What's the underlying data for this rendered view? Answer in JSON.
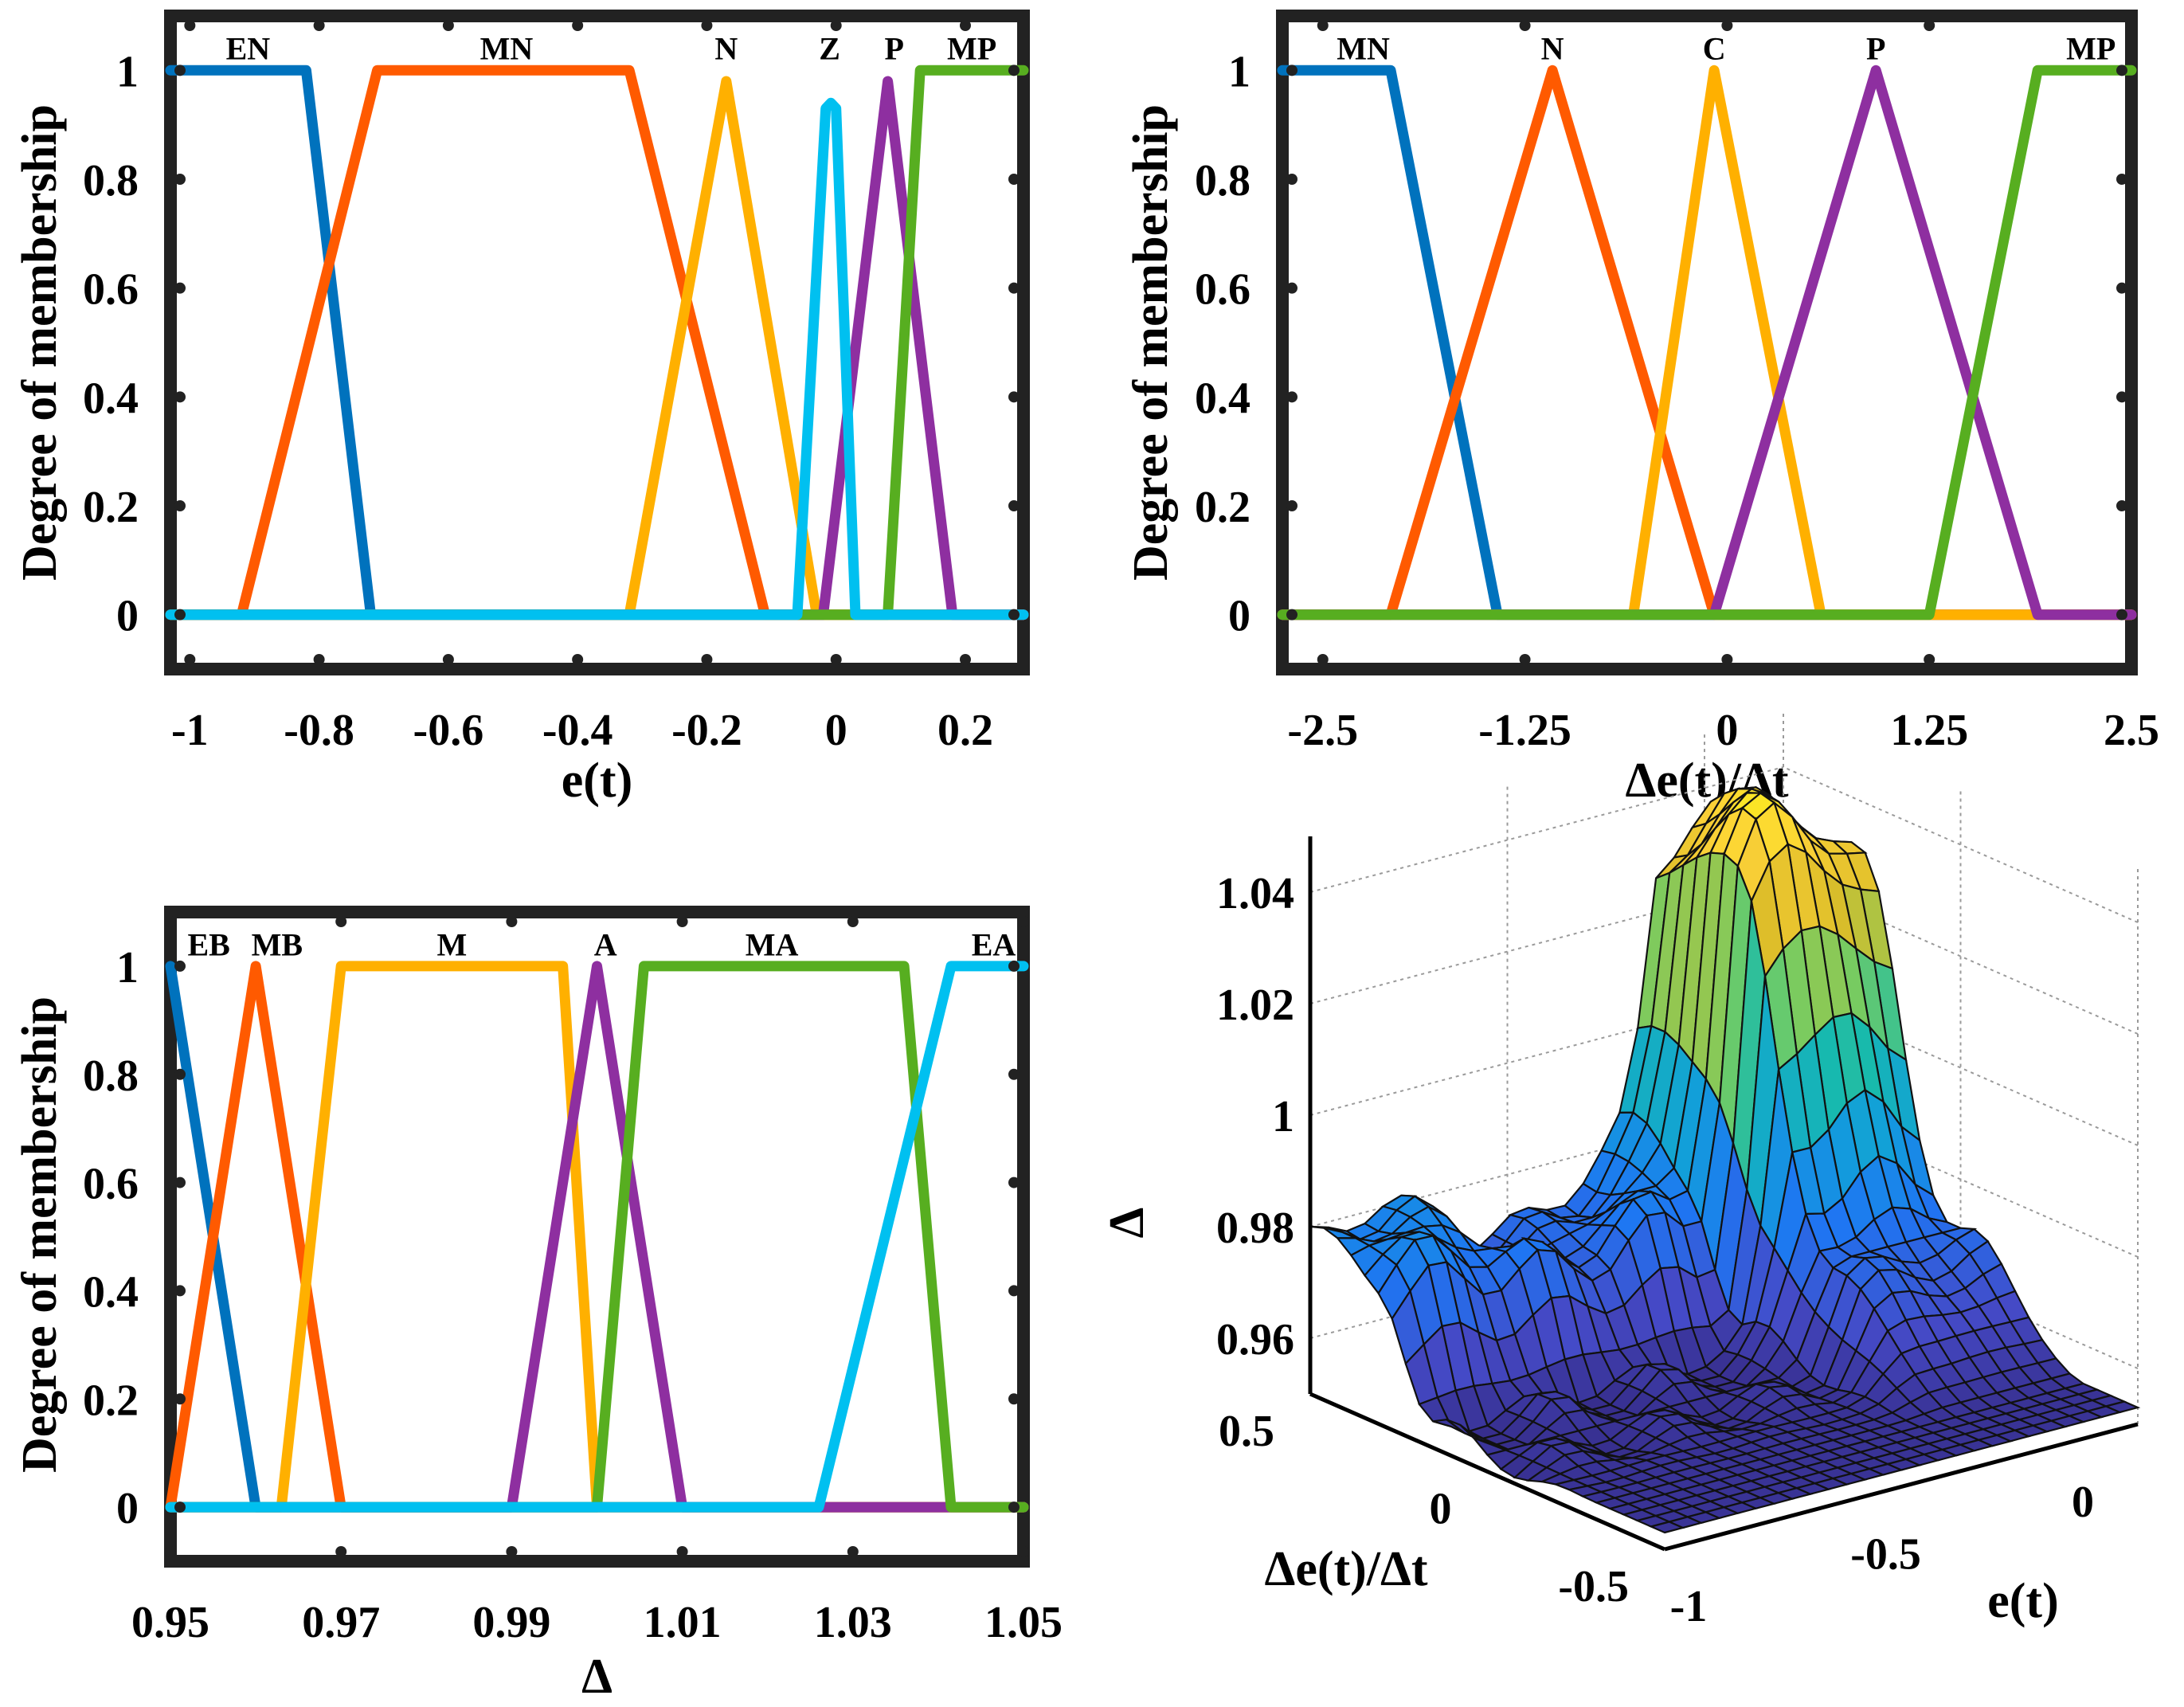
{
  "colors": {
    "blue": "#0072BD",
    "orange": "#FF5A00",
    "yellow": "#FFB000",
    "cyan": "#00C0F0",
    "purple": "#8E2FA0",
    "green": "#57AE20",
    "frame": "#222222"
  },
  "chart_data": [
    {
      "type": "line",
      "xlabel": "e(t)",
      "ylabel": "Degree of membership",
      "xlim": [
        -1.03,
        0.29
      ],
      "ylim": [
        -0.1,
        1.1
      ],
      "xticks": [
        -1,
        -0.8,
        -0.6,
        -0.4,
        -0.2,
        0,
        0.2
      ],
      "xtick_labels": [
        "-1",
        "-0.8",
        "-0.6",
        "-0.4",
        "-0.2",
        "0",
        "0.2"
      ],
      "yticks": [
        0,
        0.2,
        0.4,
        0.6,
        0.8,
        1
      ],
      "ytick_labels": [
        "0",
        "0.2",
        "0.4",
        "0.6",
        "0.8",
        "1"
      ],
      "grid": false,
      "series": [
        {
          "name": "EN",
          "color": "blue",
          "x": [
            -1.03,
            -0.82,
            -0.72,
            0.29
          ],
          "y": [
            1,
            1,
            0,
            0
          ]
        },
        {
          "name": "MN",
          "color": "orange",
          "x": [
            -1.03,
            -0.92,
            -0.71,
            -0.32,
            -0.11,
            0.29
          ],
          "y": [
            0,
            0,
            1,
            1,
            0,
            0
          ]
        },
        {
          "name": "N",
          "color": "yellow",
          "x": [
            -1.03,
            -0.32,
            -0.17,
            -0.03,
            0.29
          ],
          "y": [
            0,
            0,
            0.98,
            0,
            0
          ]
        },
        {
          "name": "P",
          "color": "purple",
          "x": [
            -1.03,
            -0.02,
            0.08,
            0.18,
            0.29
          ],
          "y": [
            0,
            0,
            0.98,
            0,
            0
          ]
        },
        {
          "name": "MP",
          "color": "green",
          "x": [
            -1.03,
            0.08,
            0.13,
            0.29
          ],
          "y": [
            0,
            0,
            1,
            1
          ]
        },
        {
          "name": "Z",
          "color": "cyan",
          "x": [
            -1.03,
            -0.06,
            -0.016,
            -0.008,
            0.0,
            0.03,
            0.29
          ],
          "y": [
            0,
            0,
            0.93,
            0.94,
            0.93,
            0,
            0
          ]
        }
      ],
      "labels": [
        {
          "text": "EN",
          "x": -0.91,
          "y": 1.02
        },
        {
          "text": "MN",
          "x": -0.51,
          "y": 1.02
        },
        {
          "text": "N",
          "x": -0.17,
          "y": 1.02
        },
        {
          "text": "Z",
          "x": -0.01,
          "y": 1.02
        },
        {
          "text": "P",
          "x": 0.09,
          "y": 1.02
        },
        {
          "text": "MP",
          "x": 0.21,
          "y": 1.02
        }
      ]
    },
    {
      "type": "line",
      "xlabel": "Δe(t)/Δt",
      "ylabel": "Degree of membership",
      "xlim": [
        -2.75,
        2.5
      ],
      "ylim": [
        -0.1,
        1.1
      ],
      "xticks": [
        -2.5,
        -1.25,
        0,
        1.25,
        2.5
      ],
      "xtick_labels": [
        "-2.5",
        "-1.25",
        "0",
        "1.25",
        "2.5"
      ],
      "yticks": [
        0,
        0.2,
        0.4,
        0.6,
        0.8,
        1
      ],
      "ytick_labels": [
        "0",
        "0.2",
        "0.4",
        "0.6",
        "0.8",
        "1"
      ],
      "grid": false,
      "series": [
        {
          "name": "MN",
          "color": "blue",
          "x": [
            -2.75,
            -2.08,
            -1.42,
            2.5
          ],
          "y": [
            1,
            1,
            0,
            0
          ]
        },
        {
          "name": "N",
          "color": "orange",
          "x": [
            -2.75,
            -2.08,
            -1.08,
            -0.08,
            2.5
          ],
          "y": [
            0,
            0,
            1,
            0,
            0
          ]
        },
        {
          "name": "C",
          "color": "yellow",
          "x": [
            -2.75,
            -0.58,
            -0.08,
            0.58,
            2.5
          ],
          "y": [
            0,
            0,
            1,
            0,
            0
          ]
        },
        {
          "name": "P",
          "color": "purple",
          "x": [
            -2.75,
            -0.08,
            0.92,
            1.92,
            2.5
          ],
          "y": [
            0,
            0,
            1,
            0,
            0
          ]
        },
        {
          "name": "MP",
          "color": "green",
          "x": [
            -2.75,
            1.25,
            1.92,
            2.5
          ],
          "y": [
            0,
            0,
            1,
            1
          ]
        }
      ],
      "labels": [
        {
          "text": "MN",
          "x": -2.25,
          "y": 1.02
        },
        {
          "text": "N",
          "x": -1.08,
          "y": 1.02
        },
        {
          "text": "C",
          "x": -0.08,
          "y": 1.02
        },
        {
          "text": "P",
          "x": 0.92,
          "y": 1.02
        },
        {
          "text": "MP",
          "x": 2.25,
          "y": 1.02
        }
      ]
    },
    {
      "type": "line",
      "xlabel": "Δ",
      "ylabel": "Degree of membership",
      "xlim": [
        0.95,
        1.05
      ],
      "ylim": [
        -0.1,
        1.1
      ],
      "xticks": [
        0.95,
        0.97,
        0.99,
        1.01,
        1.03,
        1.05
      ],
      "xtick_labels": [
        "0.95",
        "0.97",
        "0.99",
        "1.01",
        "1.03",
        "1.05"
      ],
      "yticks": [
        0,
        0.2,
        0.4,
        0.6,
        0.8,
        1
      ],
      "ytick_labels": [
        "0",
        "0.2",
        "0.4",
        "0.6",
        "0.8",
        "1"
      ],
      "grid": false,
      "series": [
        {
          "name": "EB",
          "color": "blue",
          "x": [
            0.95,
            0.96,
            1.05
          ],
          "y": [
            1,
            0,
            0
          ]
        },
        {
          "name": "MB",
          "color": "orange",
          "x": [
            0.95,
            0.96,
            0.97,
            1.05
          ],
          "y": [
            0,
            1,
            0,
            0
          ]
        },
        {
          "name": "M",
          "color": "yellow",
          "x": [
            0.95,
            0.963,
            0.97,
            0.996,
            1.0,
            1.05
          ],
          "y": [
            0,
            0,
            1,
            1,
            0,
            0
          ]
        },
        {
          "name": "A",
          "color": "purple",
          "x": [
            0.95,
            0.99,
            1.0,
            1.01,
            1.05
          ],
          "y": [
            0,
            0,
            1,
            0,
            0
          ]
        },
        {
          "name": "MA",
          "color": "green",
          "x": [
            0.95,
            1.0,
            1.0055,
            1.036,
            1.0415,
            1.05
          ],
          "y": [
            0,
            0,
            1,
            1,
            0,
            0
          ]
        },
        {
          "name": "EA",
          "color": "cyan",
          "x": [
            0.95,
            1.026,
            1.0415,
            1.05
          ],
          "y": [
            0,
            0,
            1,
            1
          ]
        }
      ],
      "labels": [
        {
          "text": "EB",
          "x": 0.9545,
          "y": 1.02
        },
        {
          "text": "MB",
          "x": 0.9625,
          "y": 1.02
        },
        {
          "text": "M",
          "x": 0.983,
          "y": 1.02
        },
        {
          "text": "A",
          "x": 1.001,
          "y": 1.02
        },
        {
          "text": "MA",
          "x": 1.0205,
          "y": 1.02
        },
        {
          "text": "EA",
          "x": 1.0465,
          "y": 1.02
        }
      ]
    },
    {
      "type": "surface",
      "xlabel": "e(t)",
      "ylabel": "Δe(t)/Δt",
      "zlabel": "Δ",
      "xlim": [
        -1,
        0.2
      ],
      "ylim": [
        -0.5,
        0.5
      ],
      "zlim": [
        0.95,
        1.05
      ],
      "xtick_labels": [
        "-1",
        "-0.5",
        "0"
      ],
      "ytick_labels": [
        "-0.5",
        "0",
        "0.5"
      ],
      "ztick_labels": [
        "0.96",
        "0.98",
        "1",
        "1.02",
        "1.04"
      ],
      "colormap": "parula",
      "grid": true
    }
  ]
}
